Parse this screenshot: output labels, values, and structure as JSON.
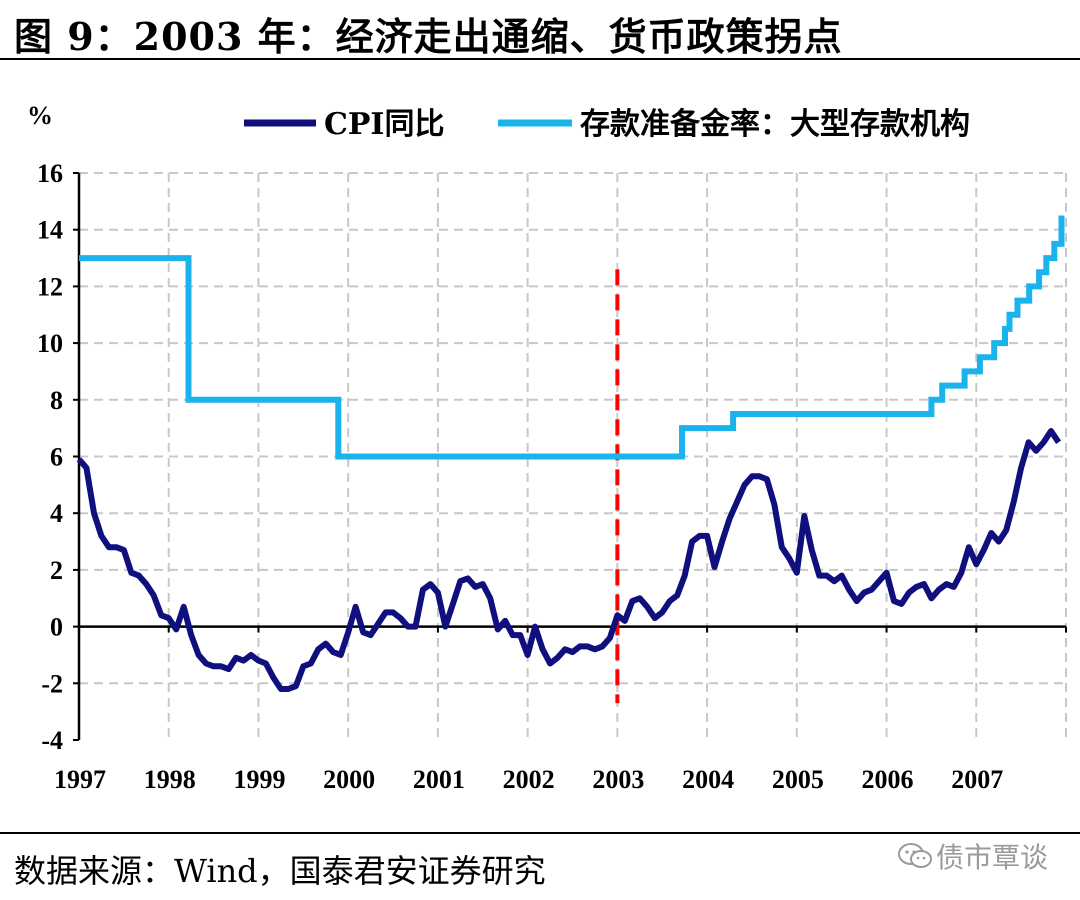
{
  "title": "图 9：2003 年：经济走出通缩、货币政策拐点",
  "source": "数据来源：Wind，国泰君安证券研究",
  "watermark": "债市覃谈",
  "chart_data": {
    "type": "line",
    "ylabel": "%",
    "ylim": [
      -4,
      16
    ],
    "yticks": [
      -4,
      -2,
      0,
      2,
      4,
      6,
      8,
      10,
      12,
      14,
      16
    ],
    "xlim": [
      1997,
      2008
    ],
    "xticks": [
      "1997",
      "1998",
      "1999",
      "2000",
      "2001",
      "2002",
      "2003",
      "2004",
      "2005",
      "2006",
      "2007"
    ],
    "grid": true,
    "legend_position": "top",
    "marker_line": {
      "x": 2003.0,
      "color": "#ff0000",
      "style": "dashed"
    },
    "series": [
      {
        "name": "CPI同比",
        "color": "#0f0f7d",
        "x": [
          1997.0,
          1997.083,
          1997.167,
          1997.25,
          1997.333,
          1997.417,
          1997.5,
          1997.583,
          1997.667,
          1997.75,
          1997.833,
          1997.917,
          1998.0,
          1998.083,
          1998.167,
          1998.25,
          1998.333,
          1998.417,
          1998.5,
          1998.583,
          1998.667,
          1998.75,
          1998.833,
          1998.917,
          1999.0,
          1999.083,
          1999.167,
          1999.25,
          1999.333,
          1999.417,
          1999.5,
          1999.583,
          1999.667,
          1999.75,
          1999.833,
          1999.917,
          2000.0,
          2000.083,
          2000.167,
          2000.25,
          2000.333,
          2000.417,
          2000.5,
          2000.583,
          2000.667,
          2000.75,
          2000.833,
          2000.917,
          2001.0,
          2001.083,
          2001.167,
          2001.25,
          2001.333,
          2001.417,
          2001.5,
          2001.583,
          2001.667,
          2001.75,
          2001.833,
          2001.917,
          2002.0,
          2002.083,
          2002.167,
          2002.25,
          2002.333,
          2002.417,
          2002.5,
          2002.583,
          2002.667,
          2002.75,
          2002.833,
          2002.917,
          2003.0,
          2003.083,
          2003.167,
          2003.25,
          2003.333,
          2003.417,
          2003.5,
          2003.583,
          2003.667,
          2003.75,
          2003.833,
          2003.917,
          2004.0,
          2004.083,
          2004.167,
          2004.25,
          2004.333,
          2004.417,
          2004.5,
          2004.583,
          2004.667,
          2004.75,
          2004.833,
          2004.917,
          2005.0,
          2005.083,
          2005.167,
          2005.25,
          2005.333,
          2005.417,
          2005.5,
          2005.583,
          2005.667,
          2005.75,
          2005.833,
          2005.917,
          2006.0,
          2006.083,
          2006.167,
          2006.25,
          2006.333,
          2006.417,
          2006.5,
          2006.583,
          2006.667,
          2006.75,
          2006.833,
          2006.917,
          2007.0,
          2007.083,
          2007.167,
          2007.25,
          2007.333,
          2007.417,
          2007.5,
          2007.583,
          2007.667,
          2007.75,
          2007.833,
          2007.917
        ],
        "values": [
          5.9,
          5.6,
          4.0,
          3.2,
          2.8,
          2.8,
          2.7,
          1.9,
          1.8,
          1.5,
          1.1,
          0.4,
          0.3,
          -0.1,
          0.7,
          -0.3,
          -1.0,
          -1.3,
          -1.4,
          -1.4,
          -1.5,
          -1.1,
          -1.2,
          -1.0,
          -1.2,
          -1.3,
          -1.8,
          -2.2,
          -2.2,
          -2.1,
          -1.4,
          -1.3,
          -0.8,
          -0.6,
          -0.9,
          -1.0,
          -0.2,
          0.7,
          -0.2,
          -0.3,
          0.1,
          0.5,
          0.5,
          0.3,
          0.0,
          0.0,
          1.3,
          1.5,
          1.2,
          0.0,
          0.8,
          1.6,
          1.7,
          1.4,
          1.5,
          1.0,
          -0.1,
          0.2,
          -0.3,
          -0.3,
          -1.0,
          0.0,
          -0.8,
          -1.3,
          -1.1,
          -0.8,
          -0.9,
          -0.7,
          -0.7,
          -0.8,
          -0.7,
          -0.4,
          0.4,
          0.2,
          0.9,
          1.0,
          0.7,
          0.3,
          0.5,
          0.9,
          1.1,
          1.8,
          3.0,
          3.2,
          3.2,
          2.1,
          3.0,
          3.8,
          4.4,
          5.0,
          5.3,
          5.3,
          5.2,
          4.3,
          2.8,
          2.4,
          1.9,
          3.9,
          2.7,
          1.8,
          1.8,
          1.6,
          1.8,
          1.3,
          0.9,
          1.2,
          1.3,
          1.6,
          1.9,
          0.9,
          0.8,
          1.2,
          1.4,
          1.5,
          1.0,
          1.3,
          1.5,
          1.4,
          1.9,
          2.8,
          2.2,
          2.7,
          3.3,
          3.0,
          3.4,
          4.4,
          5.6,
          6.5,
          6.2,
          6.5,
          6.9,
          6.5
        ]
      },
      {
        "name": "存款准备金率：大型存款机构",
        "color": "#1ab3ec",
        "steps": [
          [
            1997.0,
            13.0
          ],
          [
            1998.22,
            13.0
          ],
          [
            1998.22,
            8.0
          ],
          [
            1999.89,
            8.0
          ],
          [
            1999.89,
            6.0
          ],
          [
            2003.72,
            6.0
          ],
          [
            2003.72,
            7.0
          ],
          [
            2004.29,
            7.0
          ],
          [
            2004.29,
            7.5
          ],
          [
            2006.5,
            7.5
          ],
          [
            2006.5,
            8.0
          ],
          [
            2006.62,
            8.0
          ],
          [
            2006.62,
            8.5
          ],
          [
            2006.87,
            8.5
          ],
          [
            2006.87,
            9.0
          ],
          [
            2007.04,
            9.0
          ],
          [
            2007.04,
            9.5
          ],
          [
            2007.2,
            9.5
          ],
          [
            2007.2,
            10.0
          ],
          [
            2007.32,
            10.0
          ],
          [
            2007.32,
            10.5
          ],
          [
            2007.37,
            10.5
          ],
          [
            2007.37,
            11.0
          ],
          [
            2007.46,
            11.0
          ],
          [
            2007.46,
            11.5
          ],
          [
            2007.59,
            11.5
          ],
          [
            2007.59,
            12.0
          ],
          [
            2007.7,
            12.0
          ],
          [
            2007.7,
            12.5
          ],
          [
            2007.78,
            12.5
          ],
          [
            2007.78,
            13.0
          ],
          [
            2007.87,
            13.0
          ],
          [
            2007.87,
            13.5
          ],
          [
            2007.95,
            13.5
          ],
          [
            2007.95,
            14.5
          ]
        ]
      }
    ]
  }
}
